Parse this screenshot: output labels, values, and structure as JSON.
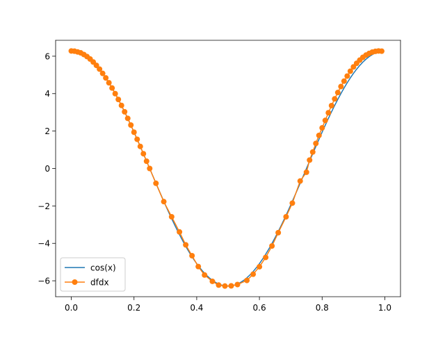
{
  "chart_data": {
    "type": "line",
    "title": "",
    "xlabel": "",
    "ylabel": "",
    "xlim": [
      -0.05,
      1.05
    ],
    "ylim": [
      -6.85,
      6.85
    ],
    "grid": false,
    "legend_position": "lower-left",
    "x_ticks": [
      0.0,
      0.2,
      0.4,
      0.6,
      0.8,
      1.0
    ],
    "x_tick_labels": [
      "0.0",
      "0.2",
      "0.4",
      "0.6",
      "0.8",
      "1.0"
    ],
    "y_ticks": [
      -6,
      -4,
      -2,
      0,
      2,
      4,
      6
    ],
    "y_tick_labels": [
      "−6",
      "−4",
      "−2",
      "0",
      "2",
      "4",
      "6"
    ],
    "series": [
      {
        "name": "cos(x)",
        "color": "#1f77b4",
        "marker": "none",
        "function": "2*pi*cos(2*pi*x)",
        "x_range": [
          0.0,
          0.99
        ],
        "samples": 100
      },
      {
        "name": "dfdx",
        "color": "#ff7f0e",
        "marker": "circle",
        "x": [
          0.0,
          0.01,
          0.02,
          0.03,
          0.04,
          0.05,
          0.06,
          0.07,
          0.08,
          0.09,
          0.1,
          0.11,
          0.12,
          0.13,
          0.14,
          0.15,
          0.16,
          0.17,
          0.18,
          0.19,
          0.2,
          0.21,
          0.22,
          0.23,
          0.24,
          0.25,
          0.27,
          0.295,
          0.32,
          0.345,
          0.365,
          0.385,
          0.405,
          0.425,
          0.45,
          0.47,
          0.49,
          0.51,
          0.53,
          0.56,
          0.58,
          0.6,
          0.62,
          0.64,
          0.66,
          0.685,
          0.705,
          0.73,
          0.75,
          0.76,
          0.77,
          0.78,
          0.79,
          0.8,
          0.81,
          0.82,
          0.83,
          0.84,
          0.85,
          0.86,
          0.87,
          0.88,
          0.89,
          0.9,
          0.91,
          0.92,
          0.93,
          0.94,
          0.95,
          0.96,
          0.97,
          0.98,
          0.99
        ],
        "y": [
          6.28,
          6.27,
          6.23,
          6.18,
          6.09,
          5.98,
          5.85,
          5.69,
          5.51,
          5.31,
          5.08,
          4.84,
          4.58,
          4.3,
          4.0,
          3.69,
          3.37,
          3.03,
          2.68,
          2.32,
          1.94,
          1.56,
          1.18,
          0.79,
          0.39,
          0.0,
          -0.79,
          -1.77,
          -2.58,
          -3.39,
          -4.08,
          -4.66,
          -5.24,
          -5.69,
          -6.03,
          -6.23,
          -6.28,
          -6.27,
          -6.2,
          -5.98,
          -5.65,
          -5.25,
          -4.75,
          -4.14,
          -3.43,
          -2.58,
          -1.85,
          -0.67,
          -0.2,
          0.45,
          0.88,
          1.34,
          1.77,
          2.17,
          2.57,
          2.98,
          3.36,
          3.72,
          4.06,
          4.38,
          4.67,
          4.94,
          5.2,
          5.43,
          5.62,
          5.79,
          5.94,
          6.06,
          6.15,
          6.22,
          6.26,
          6.28,
          6.27
        ]
      }
    ]
  }
}
